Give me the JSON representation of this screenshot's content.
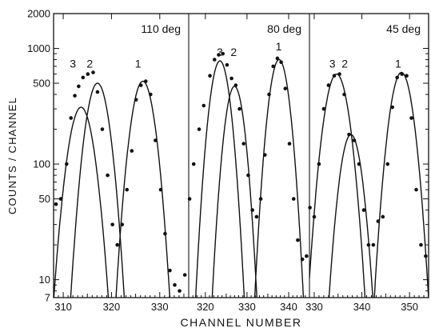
{
  "chart_data": {
    "type": "scatter",
    "title": "",
    "xlabel": "CHANNEL NUMBER",
    "ylabel": "COUNTS / CHANNEL",
    "yscale": "log",
    "ylim": [
      7,
      2000
    ],
    "y_ticks": [
      {
        "v": 7,
        "label": "7"
      },
      {
        "v": 10,
        "label": "10"
      },
      {
        "v": 50,
        "label": "50"
      },
      {
        "v": 100,
        "label": "100"
      },
      {
        "v": 500,
        "label": "500"
      },
      {
        "v": 1000,
        "label": "1000"
      },
      {
        "v": 2000,
        "label": "2000"
      }
    ],
    "y_minor_ticks": [
      8,
      9,
      20,
      30,
      40,
      60,
      70,
      80,
      90,
      200,
      300,
      400,
      600,
      700,
      800,
      900
    ],
    "grid": false,
    "panels": [
      {
        "angle_label": "110 deg",
        "xlim": [
          308,
          336
        ],
        "x_ticks": [
          310,
          320,
          330
        ],
        "peak_labels": [
          {
            "text": "3",
            "x": 312.0,
            "y": 680
          },
          {
            "text": "2",
            "x": 315.5,
            "y": 680
          },
          {
            "text": "1",
            "x": 325.5,
            "y": 680
          }
        ],
        "points": [
          [
            308.5,
            45
          ],
          [
            309.5,
            50
          ],
          [
            310.7,
            100
          ],
          [
            311.6,
            250
          ],
          [
            312.4,
            390
          ],
          [
            313.2,
            470
          ],
          [
            314.1,
            560
          ],
          [
            315.1,
            600
          ],
          [
            316.2,
            620
          ],
          [
            317.1,
            420
          ],
          [
            318.1,
            200
          ],
          [
            319.2,
            80
          ],
          [
            320.2,
            30
          ],
          [
            321.2,
            20
          ],
          [
            322.2,
            30
          ],
          [
            323.2,
            60
          ],
          [
            324.2,
            130
          ],
          [
            325.1,
            360
          ],
          [
            326.1,
            480
          ],
          [
            327.1,
            520
          ],
          [
            328.1,
            400
          ],
          [
            329.1,
            160
          ],
          [
            330.2,
            60
          ],
          [
            331.1,
            25
          ],
          [
            332.1,
            12
          ],
          [
            333.1,
            9
          ],
          [
            334.1,
            8
          ],
          [
            335.2,
            11
          ]
        ],
        "curves": [
          {
            "name": "3",
            "amp": 310,
            "center": 313.7,
            "sigma": 2.05
          },
          {
            "name": "2",
            "amp": 500,
            "center": 317.1,
            "sigma": 1.9
          },
          {
            "name": "1",
            "amp": 520,
            "center": 326.5,
            "sigma": 1.9
          }
        ]
      },
      {
        "angle_label": "80 deg",
        "xlim": [
          316,
          345
        ],
        "x_ticks": [
          320,
          330,
          340
        ],
        "peak_labels": [
          {
            "text": "3",
            "x": 323.5,
            "y": 860
          },
          {
            "text": "2",
            "x": 326.8,
            "y": 860
          },
          {
            "text": "1",
            "x": 337.6,
            "y": 960
          }
        ],
        "points": [
          [
            316.2,
            50
          ],
          [
            317.2,
            100
          ],
          [
            318.5,
            200
          ],
          [
            319.6,
            320
          ],
          [
            321.1,
            580
          ],
          [
            322.2,
            800
          ],
          [
            323.2,
            880
          ],
          [
            324.2,
            900
          ],
          [
            325.2,
            720
          ],
          [
            326.3,
            550
          ],
          [
            327.3,
            480
          ],
          [
            328.2,
            300
          ],
          [
            329.2,
            150
          ],
          [
            330.3,
            80
          ],
          [
            331.3,
            40
          ],
          [
            332.3,
            35
          ],
          [
            333.3,
            50
          ],
          [
            334.3,
            120
          ],
          [
            335.3,
            400
          ],
          [
            336.3,
            700
          ],
          [
            337.3,
            820
          ],
          [
            338.2,
            760
          ],
          [
            339.2,
            450
          ],
          [
            340.2,
            150
          ],
          [
            341.2,
            50
          ],
          [
            342.2,
            22
          ],
          [
            343.3,
            15
          ],
          [
            344.3,
            16
          ]
        ],
        "curves": [
          {
            "name": "3",
            "amp": 780,
            "center": 323.5,
            "sigma": 1.9
          },
          {
            "name": "2",
            "amp": 470,
            "center": 327.0,
            "sigma": 1.85
          },
          {
            "name": "1",
            "amp": 800,
            "center": 337.7,
            "sigma": 1.9
          }
        ]
      },
      {
        "angle_label": "45 deg",
        "xlim": [
          329,
          354
        ],
        "x_ticks": [
          330,
          340,
          350
        ],
        "peak_labels": [
          {
            "text": "3",
            "x": 333.8,
            "y": 680
          },
          {
            "text": "2",
            "x": 336.4,
            "y": 680
          },
          {
            "text": "1",
            "x": 347.6,
            "y": 680
          }
        ],
        "points": [
          [
            329.1,
            42
          ],
          [
            330.0,
            35
          ],
          [
            331.0,
            100
          ],
          [
            332.0,
            300
          ],
          [
            333.0,
            480
          ],
          [
            334.2,
            580
          ],
          [
            335.3,
            600
          ],
          [
            336.3,
            400
          ],
          [
            337.3,
            180
          ],
          [
            338.4,
            160
          ],
          [
            339.4,
            100
          ],
          [
            340.4,
            40
          ],
          [
            341.4,
            20
          ],
          [
            342.4,
            20
          ],
          [
            343.4,
            32
          ],
          [
            344.4,
            35
          ],
          [
            345.4,
            100
          ],
          [
            346.4,
            310
          ],
          [
            347.4,
            560
          ],
          [
            348.4,
            600
          ],
          [
            349.4,
            580
          ],
          [
            350.4,
            250
          ],
          [
            351.4,
            60
          ],
          [
            352.4,
            20
          ],
          [
            353.4,
            16
          ]
        ],
        "curves": [
          {
            "name": "3",
            "amp": 600,
            "center": 334.7,
            "sigma": 2.0
          },
          {
            "name": "2",
            "amp": 180,
            "center": 337.7,
            "sigma": 1.8
          },
          {
            "name": "1",
            "amp": 620,
            "center": 348.3,
            "sigma": 1.9
          }
        ]
      }
    ]
  }
}
